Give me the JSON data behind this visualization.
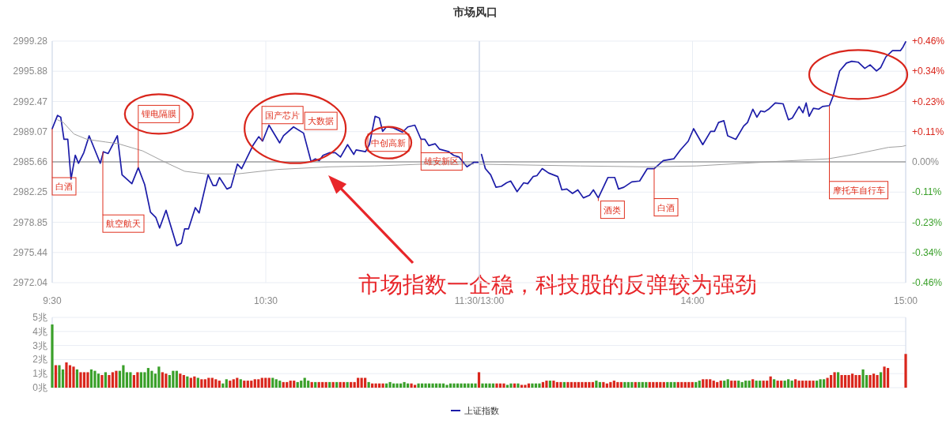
{
  "chart_data": [
    {
      "type": "line",
      "title": "市场风口",
      "xlim": [
        9.5,
        11.5
      ],
      "ylim": [
        2972.04,
        2999.28
      ],
      "xticks": [
        {
          "value": 9.5,
          "label": "9:30"
        },
        {
          "value": 10.5,
          "label": "10:30"
        },
        {
          "value": 11.5,
          "label": "11:30/13:00"
        }
      ],
      "yticks": [
        2972.04,
        2975.44,
        2978.85,
        2982.25,
        2985.66,
        2989.07,
        2992.47,
        2995.88,
        2999.28
      ],
      "grid": true,
      "legend": "bottom",
      "ref_lines": [
        {
          "axis": "y",
          "value": 2985.66,
          "color": "#777777"
        }
      ],
      "series": [
        {
          "name": "上证指数",
          "color": "#1c1ca8",
          "x": [
            9.5,
            9.525,
            9.54,
            9.555,
            9.573,
            9.588,
            9.608,
            9.623,
            9.648,
            9.673,
            9.725,
            9.74,
            9.762,
            9.805,
            9.827,
            9.873,
            9.903,
            9.933,
            9.96,
            9.985,
            10.003,
            10.033,
            10.083,
            10.105,
            10.12,
            10.138,
            10.17,
            10.188,
            10.23,
            10.253,
            10.268,
            10.283,
            10.318,
            10.337,
            10.367,
            10.387,
            10.442,
            10.467,
            10.485,
            10.515,
            10.565,
            10.583,
            10.63,
            10.677,
            10.712,
            10.732,
            10.75,
            10.768,
            10.8,
            10.825,
            10.85,
            10.883,
            10.912,
            10.923,
            10.967,
            10.985,
            11.012,
            11.032,
            11.047,
            11.065,
            11.097,
            11.14,
            11.165,
            11.198,
            11.227,
            11.245,
            11.263,
            11.293,
            11.313,
            11.357,
            11.38,
            11.405,
            11.442,
            11.473,
            11.495
          ],
          "values": [
            2989.4,
            2990.9,
            2990.7,
            2988.2,
            2988.2,
            2983.7,
            2986.4,
            2985.5,
            2986.7,
            2988.6,
            2985.5,
            2986.8,
            2986.6,
            2988.6,
            2984.2,
            2983.2,
            2985.0,
            2983.1,
            2980.0,
            2979.4,
            2978.2,
            2980.2,
            2976.2,
            2976.5,
            2978.1,
            2978.1,
            2980.5,
            2979.9,
            2984.2,
            2983.0,
            2983.0,
            2983.9,
            2982.6,
            2982.8,
            2985.4,
            2984.9,
            2987.6,
            2988.5,
            2988.0,
            2989.8,
            2987.8,
            2988.6,
            2989.6,
            2988.9,
            2985.7,
            2986.0,
            2985.8,
            2986.4,
            2986.7,
            2986.7,
            2986.2,
            2987.6,
            2986.5,
            2987.0,
            2986.8,
            2987.6,
            2990.8,
            2990.6,
            2989.1,
            2989.6,
            2989.5,
            2989.0,
            2989.6,
            2989.8,
            2988.2,
            2988.2,
            2987.5,
            2987.7,
            2987.1,
            2986.8,
            2986.4,
            2986.2,
            2985.1,
            2985.6,
            2985.6
          ]
        },
        {
          "color": "#a0a0a0",
          "x": [
            9.525,
            9.552,
            9.602,
            9.663,
            9.75,
            9.81,
            9.923,
            10.022,
            10.12,
            10.22,
            10.367,
            10.553,
            10.8,
            11.01,
            11.232,
            11.473
          ],
          "values": [
            2990.4,
            2990.1,
            2988.8,
            2988.2,
            2987.9,
            2987.7,
            2986.9,
            2985.7,
            2984.6,
            2984.3,
            2984.3,
            2984.8,
            2985.1,
            2985.2,
            2985.4,
            2985.4
          ]
        }
      ],
      "annotations": [
        {
          "text": "白酒",
          "x": 9.5,
          "y": 2989.4
        },
        {
          "text": "航空航天",
          "x": 9.737,
          "y": 2986.8
        },
        {
          "text": "锂电隔膜",
          "x": 9.903,
          "y": 2985.0
        },
        {
          "text": "国产芯片",
          "x": 10.482,
          "y": 2988.0
        },
        {
          "text": "大数据",
          "x": 10.645,
          "y": 2989.3
        },
        {
          "text": "中创高新",
          "x": 10.978,
          "y": 2987.2
        },
        {
          "text": "雄安新区",
          "x": 11.227,
          "y": 2988.2
        },
        "市场指数一企稳，科技股的反弹较为强劲"
      ]
    },
    {
      "type": "line",
      "xlim": [
        13,
        15
      ],
      "ylim": [
        2972.04,
        2999.28
      ],
      "tick_labels": "x",
      "xticks": [
        {
          "value": 13,
          "label": null
        },
        {
          "value": 14,
          "label": "14:00"
        },
        {
          "value": 15,
          "label": "15:00"
        }
      ],
      "yticks": [
        2972.04,
        2975.44,
        2978.85,
        2982.25,
        2985.66,
        2989.07,
        2992.47,
        2995.88,
        2999.28
      ],
      "y2lim": [
        -0.456,
        0.456
      ],
      "y2ticks": [
        {
          "value": -0.456,
          "label": "-0.46%"
        },
        {
          "value": -0.342,
          "label": "-0.34%"
        },
        {
          "value": -0.228,
          "label": "-0.23%"
        },
        {
          "value": -0.114,
          "label": "-0.11%"
        },
        {
          "value": 0,
          "label": "0.00%"
        },
        {
          "value": 0.114,
          "label": "+0.11%"
        },
        {
          "value": 0.228,
          "label": "+0.23%"
        },
        {
          "value": 0.342,
          "label": "+0.34%"
        },
        {
          "value": 0.456,
          "label": "+0.46%"
        }
      ],
      "grid": true,
      "ref_lines": [
        {
          "axis": "y",
          "value": 2985.66,
          "color": "#777777"
        }
      ],
      "series": [
        {
          "color": "#1c1ca8",
          "x": [
            13.01,
            13.028,
            13.053,
            13.078,
            13.103,
            13.128,
            13.147,
            13.177,
            13.208,
            13.227,
            13.252,
            13.27,
            13.295,
            13.325,
            13.368,
            13.387,
            13.41,
            13.437,
            13.462,
            13.488,
            13.517,
            13.535,
            13.558,
            13.603,
            13.635,
            13.653,
            13.678,
            13.715,
            13.752,
            13.788,
            13.82,
            13.863,
            13.912,
            13.943,
            13.98,
            14.005,
            14.048,
            14.085,
            14.103,
            14.122,
            14.147,
            14.165,
            14.203,
            14.24,
            14.258,
            14.283,
            14.302,
            14.32,
            14.338,
            14.357,
            14.388,
            14.425,
            14.45,
            14.468,
            14.5,
            14.518,
            14.533,
            14.547,
            14.567,
            14.592,
            14.61,
            14.642,
            14.66,
            14.69,
            14.722,
            14.747,
            14.777,
            14.808,
            14.833,
            14.863,
            14.883,
            14.907,
            14.938,
            14.975,
            14.987,
            15
          ],
          "values": [
            2986.5,
            2984.9,
            2984.2,
            2982.8,
            2982.9,
            2983.3,
            2983.5,
            2982.3,
            2983.3,
            2983.2,
            2984.0,
            2984.1,
            2984.9,
            2984.4,
            2984.0,
            2982.5,
            2982.6,
            2982.1,
            2982.5,
            2981.6,
            2981.9,
            2982.5,
            2981.6,
            2983.9,
            2983.9,
            2982.6,
            2982.8,
            2983.4,
            2983.5,
            2984.9,
            2984.9,
            2985.8,
            2986.0,
            2987.0,
            2988.0,
            2989.4,
            2987.6,
            2989.1,
            2989.1,
            2990.1,
            2990.3,
            2988.6,
            2988.2,
            2989.7,
            2990.1,
            2991.6,
            2990.7,
            2991.4,
            2991.3,
            2991.6,
            2992.3,
            2992.2,
            2990.4,
            2990.6,
            2991.9,
            2991.2,
            2992.3,
            2990.8,
            2991.7,
            2991.6,
            2991.9,
            2992.0,
            2993.1,
            2995.9,
            2996.8,
            2997.0,
            2996.9,
            2996.2,
            2996.6,
            2995.9,
            2996.3,
            2997.5,
            2998.2,
            2998.2,
            2998.6,
            2999.2
          ]
        },
        {
          "color": "#a0a0a0",
          "x": [
            13,
            13.473,
            13.783,
            14.018,
            14.388,
            14.635,
            14.758,
            14.92,
            14.983,
            15
          ],
          "values": [
            2985.4,
            2985.2,
            2985.1,
            2985.2,
            2985.7,
            2986.0,
            2986.5,
            2987.3,
            2987.4,
            2987.5
          ]
        }
      ],
      "annotations": [
        {
          "text": "酒类",
          "x": 13.558,
          "y": 2981.6
        },
        {
          "text": "白酒",
          "x": 13.82,
          "y": 2984.9
        },
        {
          "text": "摩托车自行车",
          "x": 14.642,
          "y": 2992.0
        }
      ]
    },
    {
      "type": "bar",
      "ylim": [
        0,
        5
      ],
      "grid": "y",
      "tick_labels": "y",
      "yticks": [
        {
          "value": 0,
          "label": "0兆"
        },
        {
          "value": 1,
          "label": "1兆"
        },
        {
          "value": 2,
          "label": "2兆"
        },
        {
          "value": 3,
          "label": "3兆"
        },
        {
          "value": 4,
          "label": "4兆"
        },
        {
          "value": 5,
          "label": "5兆"
        }
      ],
      "categories": [
        null,
        null,
        null,
        null,
        null,
        null,
        null,
        null,
        null,
        null,
        null,
        null,
        null,
        null,
        null,
        null,
        null,
        null,
        null,
        null,
        null,
        null,
        null,
        null,
        null,
        null,
        null,
        null,
        null,
        null,
        null,
        null,
        null,
        null,
        null,
        null,
        null,
        null,
        null,
        null,
        null,
        null,
        null,
        null,
        null,
        null,
        null,
        null,
        null,
        null,
        null,
        null,
        null,
        null,
        null,
        null,
        null,
        null,
        null,
        null,
        null,
        null,
        null,
        null,
        null,
        null,
        null,
        null,
        null,
        null,
        null,
        null,
        null,
        null,
        null,
        null,
        null,
        null,
        null,
        null,
        null,
        null,
        null,
        null,
        null,
        null,
        null,
        null,
        null,
        null,
        null,
        null,
        null,
        null,
        null,
        null,
        null,
        null,
        null,
        null,
        null,
        null,
        null,
        null,
        null,
        null,
        null,
        null,
        null,
        null,
        null,
        null,
        null,
        null,
        null,
        null,
        null,
        null,
        null,
        null,
        null,
        null,
        null,
        null,
        null,
        null,
        null,
        null,
        null,
        null,
        null,
        null,
        null,
        null,
        null,
        null,
        null,
        null,
        null,
        null,
        null,
        null,
        null,
        null,
        null,
        null,
        null,
        null,
        null,
        null,
        null,
        null,
        null,
        null,
        null,
        null,
        null,
        null,
        null,
        null,
        null,
        null,
        null,
        null,
        null,
        null,
        null,
        null,
        null,
        null,
        null,
        null,
        null,
        null,
        null,
        null,
        null,
        null,
        null,
        null,
        null,
        null,
        null,
        null,
        null,
        null,
        null,
        null,
        null,
        null,
        null,
        null,
        null,
        null,
        null,
        null,
        null,
        null,
        null,
        null,
        null,
        null,
        null,
        null,
        null,
        null,
        null,
        null,
        null,
        null,
        null,
        null,
        null,
        null,
        null,
        null,
        null,
        null,
        null,
        null,
        null,
        null,
        null,
        null,
        null,
        null,
        null,
        null,
        null,
        null,
        null,
        null,
        null,
        null,
        null,
        null,
        null,
        null,
        null,
        null,
        null
      ],
      "values": [
        4.5,
        1.6,
        1.6,
        1.3,
        1.8,
        1.6,
        1.5,
        1.3,
        1.1,
        1.1,
        1.1,
        1.3,
        1.2,
        1.0,
        0.9,
        1.1,
        0.9,
        1.1,
        1.2,
        1.2,
        1.6,
        1.1,
        1.1,
        0.9,
        1.1,
        1.1,
        1.1,
        1.4,
        1.2,
        1.0,
        1.5,
        1.1,
        1.0,
        0.9,
        1.2,
        1.2,
        1.0,
        0.9,
        0.8,
        0.7,
        0.8,
        0.7,
        0.6,
        0.6,
        0.7,
        0.7,
        0.6,
        0.5,
        0.3,
        0.6,
        0.5,
        0.6,
        0.7,
        0.6,
        0.5,
        0.5,
        0.5,
        0.6,
        0.6,
        0.7,
        0.7,
        0.7,
        0.7,
        0.6,
        0.5,
        0.4,
        0.4,
        0.5,
        0.5,
        0.4,
        0.5,
        0.7,
        0.5,
        0.4,
        0.4,
        0.4,
        0.4,
        0.4,
        0.4,
        0.4,
        0.4,
        0.4,
        0.4,
        0.4,
        0.4,
        0.4,
        0.7,
        0.7,
        0.7,
        0.4,
        0.3,
        0.3,
        0.3,
        0.3,
        0.3,
        0.4,
        0.3,
        0.3,
        0.3,
        0.4,
        0.3,
        0.3,
        0.2,
        0.3,
        0.3,
        0.3,
        0.3,
        0.3,
        0.3,
        0.3,
        0.3,
        0.2,
        0.3,
        0.3,
        0.3,
        0.3,
        0.3,
        0.3,
        0.3,
        0.3,
        1.1,
        0.3,
        0.3,
        0.3,
        0.3,
        0.3,
        0.3,
        0.3,
        0.2,
        0.3,
        0.3,
        0.3,
        0.2,
        0.2,
        0.3,
        0.3,
        0.3,
        0.3,
        0.4,
        0.5,
        0.5,
        0.5,
        0.4,
        0.4,
        0.4,
        0.4,
        0.4,
        0.4,
        0.4,
        0.4,
        0.4,
        0.4,
        0.4,
        0.5,
        0.4,
        0.4,
        0.3,
        0.4,
        0.5,
        0.4,
        0.4,
        0.4,
        0.4,
        0.4,
        0.4,
        0.4,
        0.4,
        0.4,
        0.4,
        0.4,
        0.4,
        0.4,
        0.4,
        0.4,
        0.4,
        0.4,
        0.4,
        0.4,
        0.4,
        0.4,
        0.4,
        0.4,
        0.5,
        0.6,
        0.6,
        0.6,
        0.5,
        0.4,
        0.5,
        0.5,
        0.6,
        0.5,
        0.5,
        0.5,
        0.4,
        0.5,
        0.5,
        0.6,
        0.5,
        0.5,
        0.5,
        0.5,
        0.8,
        0.6,
        0.5,
        0.5,
        0.5,
        0.6,
        0.5,
        0.6,
        0.5,
        0.5,
        0.5,
        0.5,
        0.5,
        0.5,
        0.6,
        0.6,
        0.7,
        0.9,
        1.1,
        1.1,
        0.9,
        0.9,
        0.9,
        1.0,
        0.9,
        0.9,
        1.3,
        0.9,
        0.9,
        1.0,
        0.9,
        1.1,
        1.5,
        1.4,
        null,
        null,
        null,
        null,
        2.4
      ],
      "colors": [
        "#3aa02a",
        "#d9261c",
        "#3aa02a",
        "#3aa02a",
        "#d9261c",
        "#d9261c",
        "#d9261c",
        "#3aa02a",
        "#d9261c",
        "#d9261c",
        "#d9261c",
        "#3aa02a",
        "#3aa02a",
        "#3aa02a",
        "#d9261c",
        "#3aa02a",
        "#d9261c",
        "#d9261c",
        "#d9261c",
        "#3aa02a",
        "#3aa02a",
        "#3aa02a",
        "#3aa02a",
        "#d9261c",
        "#d9261c",
        "#3aa02a",
        "#3aa02a",
        "#3aa02a",
        "#3aa02a",
        "#3aa02a",
        "#3aa02a",
        "#d9261c",
        "#d9261c",
        "#3aa02a",
        "#3aa02a",
        "#3aa02a",
        "#d9261c",
        "#d9261c",
        "#3aa02a",
        "#d9261c",
        "#d9261c",
        "#3aa02a",
        "#d9261c",
        "#d9261c",
        "#d9261c",
        "#d9261c",
        "#d9261c",
        "#d9261c",
        "#3aa02a",
        "#3aa02a",
        "#d9261c",
        "#d9261c",
        "#d9261c",
        "#3aa02a",
        "#d9261c",
        "#d9261c",
        "#d9261c",
        "#d9261c",
        "#d9261c",
        "#d9261c",
        "#d9261c",
        "#d9261c",
        "#3aa02a",
        "#3aa02a",
        "#3aa02a",
        "#d9261c",
        "#d9261c",
        "#d9261c",
        "#d9261c",
        "#3aa02a",
        "#3aa02a",
        "#3aa02a",
        "#3aa02a",
        "#d9261c",
        "#3aa02a",
        "#d9261c",
        "#d9261c",
        "#d9261c",
        "#3aa02a",
        "#d9261c",
        "#3aa02a",
        "#d9261c",
        "#d9261c",
        "#3aa02a",
        "#d9261c",
        "#d9261c",
        "#d9261c",
        "#d9261c",
        "#d9261c",
        "#3aa02a",
        "#d9261c",
        "#d9261c",
        "#d9261c",
        "#d9261c",
        "#3aa02a",
        "#3aa02a",
        "#3aa02a",
        "#3aa02a",
        "#3aa02a",
        "#3aa02a",
        "#3aa02a",
        "#d9261c",
        "#d9261c",
        "#3aa02a",
        "#3aa02a",
        "#3aa02a",
        "#3aa02a",
        "#3aa02a",
        "#3aa02a",
        "#3aa02a",
        "#3aa02a",
        "#3aa02a",
        "#3aa02a",
        "#3aa02a",
        "#3aa02a",
        "#3aa02a",
        "#3aa02a",
        "#3aa02a",
        "#3aa02a",
        "#3aa02a",
        "#d9261c",
        "#3aa02a",
        "#3aa02a",
        "#3aa02a",
        "#3aa02a",
        "#d9261c",
        "#d9261c",
        "#d9261c",
        "#3aa02a",
        "#3aa02a",
        "#d9261c",
        "#3aa02a",
        "#d9261c",
        "#d9261c",
        "#d9261c",
        "#3aa02a",
        "#3aa02a",
        "#3aa02a",
        "#d9261c",
        "#d9261c",
        "#3aa02a",
        "#d9261c",
        "#d9261c",
        "#d9261c",
        "#3aa02a",
        "#d9261c",
        "#d9261c",
        "#d9261c",
        "#d9261c",
        "#d9261c",
        "#d9261c",
        "#d9261c",
        "#d9261c",
        "#3aa02a",
        "#3aa02a",
        "#d9261c",
        "#d9261c",
        "#d9261c",
        "#d9261c",
        "#d9261c",
        "#d9261c",
        "#3aa02a",
        "#3aa02a",
        "#3aa02a",
        "#d9261c",
        "#3aa02a",
        "#3aa02a",
        "#3aa02a",
        "#d9261c",
        "#d9261c",
        "#d9261c",
        "#d9261c",
        "#d9261c",
        "#3aa02a",
        "#3aa02a",
        "#3aa02a",
        "#d9261c",
        "#d9261c",
        "#d9261c",
        "#d9261c",
        "#d9261c",
        "#3aa02a",
        "#3aa02a",
        "#d9261c",
        "#d9261c",
        "#d9261c",
        "#d9261c",
        "#d9261c",
        "#d9261c",
        "#3aa02a",
        "#3aa02a",
        "#d9261c",
        "#d9261c",
        "#3aa02a",
        "#3aa02a",
        "#3aa02a",
        "#3aa02a",
        "#d9261c",
        "#3aa02a",
        "#3aa02a",
        "#d9261c",
        "#d9261c",
        "#d9261c",
        "#3aa02a",
        "#d9261c",
        "#d9261c",
        "#3aa02a",
        "#3aa02a",
        "#3aa02a",
        "#d9261c",
        "#d9261c",
        "#d9261c",
        "#d9261c",
        "#d9261c",
        "#d9261c",
        "#3aa02a",
        "#3aa02a",
        "#3aa02a",
        "#d9261c",
        "#d9261c",
        "#d9261c",
        "#3aa02a",
        "#d9261c",
        "#d9261c",
        "#d9261c",
        "#d9261c",
        "#d9261c",
        "#d9261c",
        "#3aa02a",
        "#3aa02a",
        "#d9261c",
        "#d9261c",
        "#d9261c",
        "#3aa02a",
        "#d9261c",
        "#d9261c",
        null,
        null,
        null,
        null,
        "#d9261c"
      ]
    }
  ]
}
